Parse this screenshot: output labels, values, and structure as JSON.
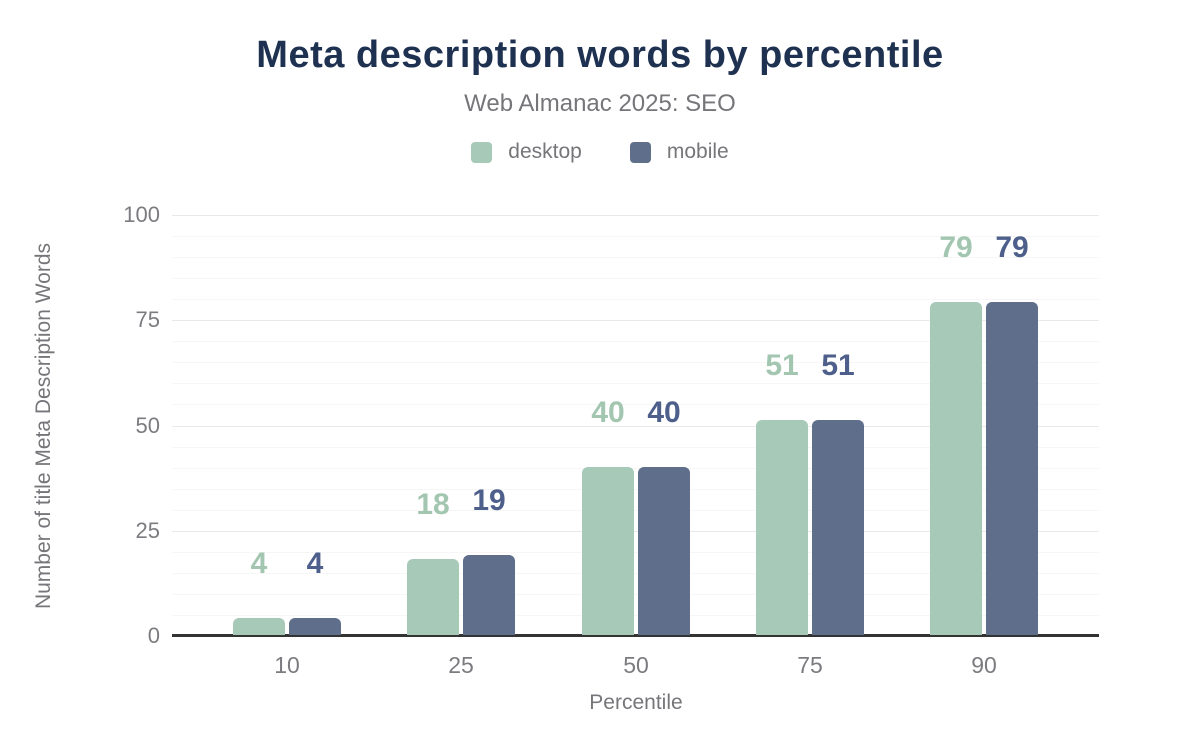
{
  "header": {
    "title": "Meta description words by percentile",
    "subtitle": "Web Almanac 2025: SEO"
  },
  "legend": {
    "items": [
      {
        "label": "desktop",
        "color": "#a7c9b8"
      },
      {
        "label": "mobile",
        "color": "#5f6e8b"
      }
    ]
  },
  "chart_data": {
    "type": "bar",
    "title": "Meta description words by percentile",
    "subtitle": "Web Almanac 2025: SEO",
    "categories": [
      "10",
      "25",
      "50",
      "75",
      "90"
    ],
    "series": [
      {
        "name": "desktop",
        "color": "#a7c9b8",
        "label_color": "#a3c6b1",
        "values": [
          4,
          18,
          40,
          51,
          79
        ]
      },
      {
        "name": "mobile",
        "color": "#5f6e8b",
        "label_color": "#4d5f8a",
        "values": [
          4,
          19,
          40,
          51,
          79
        ]
      }
    ],
    "xlabel": "Percentile",
    "ylabel": "Number of title Meta Description Words",
    "ylim": [
      0,
      100
    ],
    "yticks": [
      0,
      25,
      50,
      75,
      100
    ],
    "grid": {
      "minor_step": 5,
      "major_step": 25,
      "minor_color": "#f6f6f6",
      "major_color": "#e9e9e9"
    },
    "legend_position": "top",
    "axis_color": "#333333",
    "text_color": "#76767a"
  }
}
